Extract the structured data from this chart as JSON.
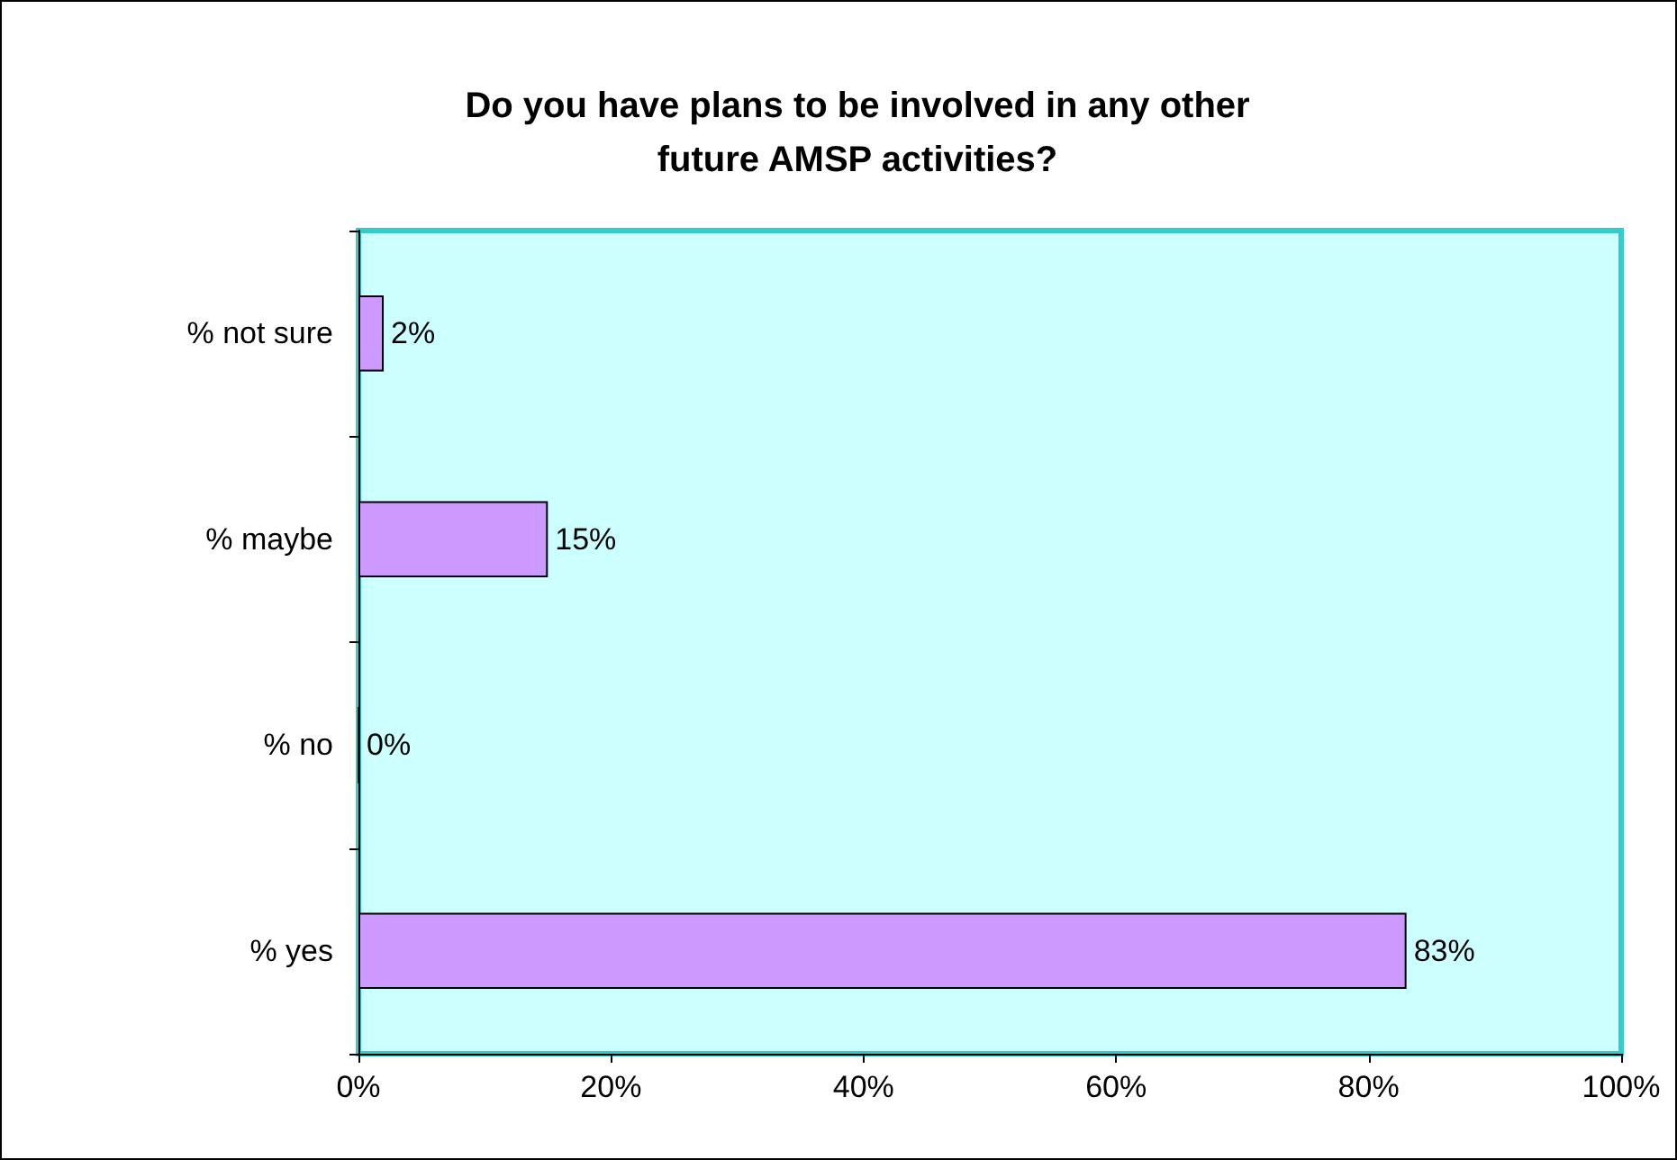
{
  "chart_data": {
    "type": "bar",
    "orientation": "horizontal",
    "title": "Do you have plans to be involved in any other\nfuture AMSP activities?",
    "categories": [
      "% not sure",
      "% maybe",
      "% no",
      "% yes"
    ],
    "values": [
      2,
      15,
      0,
      83
    ],
    "color": "#cc99ff",
    "value_labels": [
      "2%",
      "15%",
      "0%",
      "83%"
    ],
    "xlim": [
      0,
      100
    ],
    "xticks": [
      {
        "value": 0,
        "label": "0%"
      },
      {
        "value": 20,
        "label": "20%"
      },
      {
        "value": 40,
        "label": "40%"
      },
      {
        "value": 60,
        "label": "60%"
      },
      {
        "value": 80,
        "label": "80%"
      },
      {
        "value": 100,
        "label": "100%"
      }
    ],
    "grid": false
  }
}
